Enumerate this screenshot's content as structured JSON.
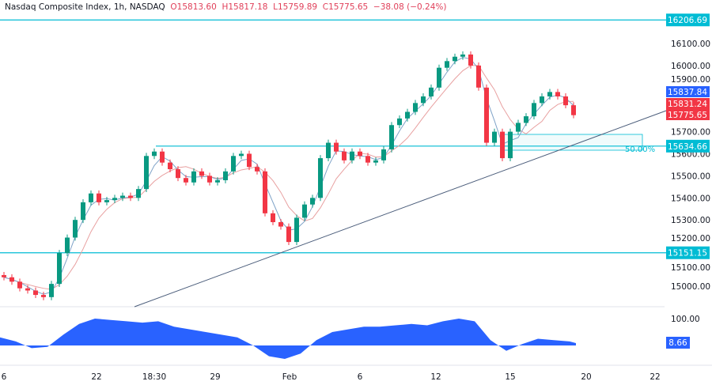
{
  "header": {
    "symbol": "Nasdaq Composite Index, 1h, NASDAQ",
    "open": "O15813.60",
    "high": "H15817.18",
    "low": "L15759.89",
    "close": "C15775.65",
    "change": "−38.08 (−0.24%)"
  },
  "chart_data": {
    "type": "candlestick",
    "title": "Nasdaq Composite Index, 1h, NASDAQ",
    "ylim": [
      14900,
      16330
    ],
    "y_ticks": [
      "16100.00",
      "16000.00",
      "15900.00",
      "15700.00",
      "15600.00",
      "15500.00",
      "15400.00",
      "15300.00",
      "15200.00",
      "15100.00",
      "15000.00"
    ],
    "y_tick_values": [
      16100,
      16000,
      15900,
      15700,
      15600,
      15500,
      15400,
      15300,
      15200,
      15100,
      15000
    ],
    "x_ticks": [
      "6",
      "22",
      "18:30",
      "29",
      "Feb",
      "6",
      "12",
      "15",
      "20",
      "22"
    ],
    "closes": [
      15040,
      15020,
      14990,
      14980,
      14960,
      14950,
      15010,
      15150,
      15220,
      15300,
      15380,
      15420,
      15380,
      15390,
      15400,
      15410,
      15400,
      15440,
      15590,
      15610,
      15560,
      15530,
      15490,
      15470,
      15520,
      15500,
      15470,
      15480,
      15520,
      15590,
      15600,
      15540,
      15520,
      15330,
      15290,
      15270,
      15200,
      15310,
      15370,
      15400,
      15580,
      15650,
      15610,
      15570,
      15610,
      15590,
      15560,
      15570,
      15620,
      15730,
      15760,
      15790,
      15830,
      15860,
      15900,
      15990,
      16020,
      16040,
      16050,
      16000,
      15900,
      15650,
      15700,
      15580,
      15700,
      15740,
      15770,
      15830,
      15860,
      15880,
      15860,
      15820,
      15775
    ],
    "levels": [
      {
        "value": 16206.69,
        "label": "16206.69"
      },
      {
        "value": 15634.66,
        "label": "15634.66"
      },
      {
        "value": 15151.15,
        "label": "15151.15"
      }
    ],
    "price_labels": [
      {
        "label": "15837.84",
        "value": 15837.84,
        "color": "#2962ff"
      },
      {
        "label": "15831.24",
        "value": 15831.24,
        "color": "#f23645"
      },
      {
        "label": "15775.65",
        "value": 15775.65,
        "color": "#f23645"
      }
    ],
    "fib_label": "50.00%",
    "oscillator": {
      "values": [
        30,
        15,
        -10,
        -5,
        40,
        80,
        100,
        95,
        90,
        85,
        90,
        70,
        60,
        50,
        40,
        30,
        0,
        -40,
        -50,
        -30,
        20,
        50,
        60,
        70,
        70,
        75,
        80,
        75,
        90,
        100,
        90,
        20,
        -20,
        5,
        25,
        20,
        15,
        9
      ],
      "tick": "100.00",
      "current": "8.66"
    }
  },
  "colors": {
    "up": "#089981",
    "down": "#f23645",
    "level": "#00bcd4",
    "osc": "#2962ff"
  }
}
